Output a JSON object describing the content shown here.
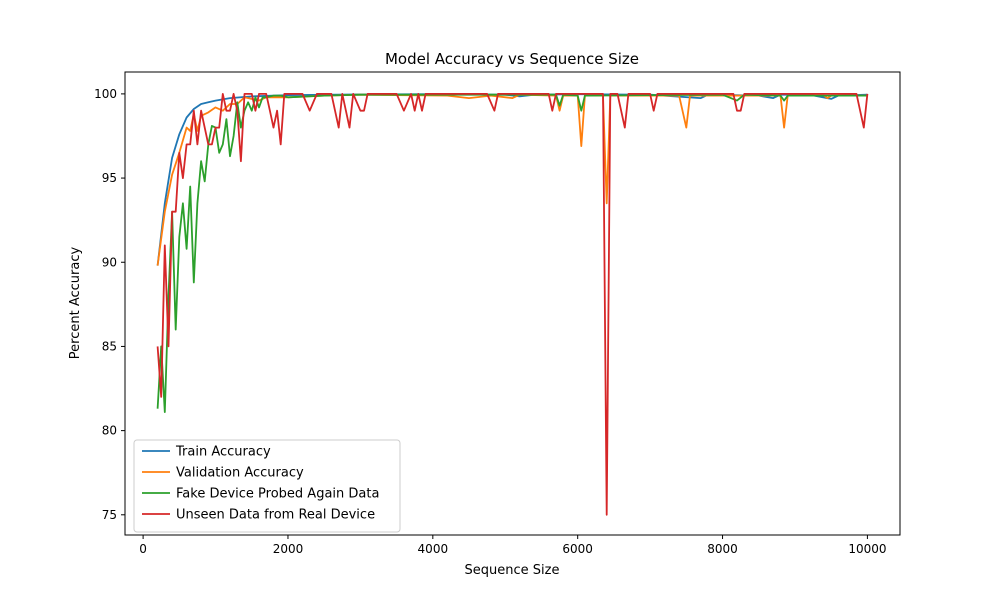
{
  "chart_data": {
    "type": "line",
    "title": "Model Accuracy vs Sequence Size",
    "xlabel": "Sequence Size",
    "ylabel": "Percent Accuracy",
    "xlim": [
      -250,
      10450
    ],
    "ylim": [
      73.8,
      101.3
    ],
    "xticks": [
      0,
      2000,
      4000,
      6000,
      8000,
      10000
    ],
    "yticks": [
      75,
      80,
      85,
      90,
      95,
      100
    ],
    "grid": false,
    "legend_position": "lower-left",
    "series": [
      {
        "name": "Train Accuracy",
        "color": "#1f77b4",
        "points": [
          [
            200,
            89.8
          ],
          [
            300,
            93.5
          ],
          [
            400,
            96.2
          ],
          [
            500,
            97.6
          ],
          [
            600,
            98.6
          ],
          [
            700,
            99.1
          ],
          [
            800,
            99.4
          ],
          [
            900,
            99.5
          ],
          [
            1000,
            99.6
          ],
          [
            1200,
            99.75
          ],
          [
            1500,
            99.85
          ],
          [
            2000,
            99.93
          ],
          [
            3000,
            99.97
          ],
          [
            4000,
            99.98
          ],
          [
            5000,
            99.95
          ],
          [
            5200,
            99.85
          ],
          [
            5400,
            99.95
          ],
          [
            6000,
            99.98
          ],
          [
            7000,
            99.95
          ],
          [
            7700,
            99.75
          ],
          [
            7800,
            99.95
          ],
          [
            8500,
            99.9
          ],
          [
            8700,
            99.75
          ],
          [
            8800,
            99.95
          ],
          [
            9200,
            99.95
          ],
          [
            9500,
            99.7
          ],
          [
            9600,
            99.9
          ],
          [
            10000,
            99.95
          ]
        ]
      },
      {
        "name": "Validation Accuracy",
        "color": "#ff7f0e",
        "points": [
          [
            200,
            89.8
          ],
          [
            300,
            93.0
          ],
          [
            400,
            95.2
          ],
          [
            500,
            96.5
          ],
          [
            600,
            98.0
          ],
          [
            650,
            97.8
          ],
          [
            700,
            98.8
          ],
          [
            750,
            97.8
          ],
          [
            800,
            98.7
          ],
          [
            900,
            98.9
          ],
          [
            1000,
            99.2
          ],
          [
            1100,
            99.0
          ],
          [
            1200,
            99.4
          ],
          [
            1300,
            99.4
          ],
          [
            1400,
            99.8
          ],
          [
            1600,
            99.6
          ],
          [
            1700,
            99.8
          ],
          [
            2000,
            99.8
          ],
          [
            2500,
            99.9
          ],
          [
            3000,
            99.95
          ],
          [
            4200,
            99.9
          ],
          [
            4500,
            99.75
          ],
          [
            4800,
            99.9
          ],
          [
            5100,
            99.75
          ],
          [
            5200,
            99.95
          ],
          [
            5700,
            99.9
          ],
          [
            5750,
            99.0
          ],
          [
            5800,
            99.9
          ],
          [
            6000,
            99.9
          ],
          [
            6050,
            96.9
          ],
          [
            6100,
            99.9
          ],
          [
            6350,
            99.9
          ],
          [
            6400,
            93.5
          ],
          [
            6450,
            99.9
          ],
          [
            7400,
            99.9
          ],
          [
            7500,
            98.0
          ],
          [
            7550,
            99.9
          ],
          [
            8800,
            99.9
          ],
          [
            8850,
            98.0
          ],
          [
            8900,
            99.9
          ],
          [
            9400,
            99.9
          ],
          [
            9450,
            99.75
          ],
          [
            9500,
            99.9
          ],
          [
            10000,
            99.9
          ]
        ]
      },
      {
        "name": "Fake Device Probed Again Data",
        "color": "#2ca02c",
        "points": [
          [
            200,
            81.3
          ],
          [
            250,
            85.0
          ],
          [
            300,
            81.1
          ],
          [
            350,
            88.0
          ],
          [
            400,
            93.0
          ],
          [
            450,
            86.0
          ],
          [
            500,
            91.5
          ],
          [
            550,
            93.5
          ],
          [
            600,
            90.8
          ],
          [
            650,
            94.5
          ],
          [
            700,
            88.8
          ],
          [
            750,
            93.5
          ],
          [
            800,
            96.0
          ],
          [
            850,
            94.8
          ],
          [
            900,
            97.0
          ],
          [
            950,
            98.1
          ],
          [
            1000,
            98.0
          ],
          [
            1050,
            96.5
          ],
          [
            1100,
            97.0
          ],
          [
            1150,
            98.5
          ],
          [
            1200,
            96.3
          ],
          [
            1250,
            97.5
          ],
          [
            1300,
            99.5
          ],
          [
            1350,
            98.0
          ],
          [
            1400,
            99.0
          ],
          [
            1450,
            99.5
          ],
          [
            1500,
            99.0
          ],
          [
            1550,
            99.8
          ],
          [
            1600,
            99.2
          ],
          [
            1650,
            99.8
          ],
          [
            1700,
            99.8
          ],
          [
            1800,
            99.9
          ],
          [
            1900,
            99.9
          ],
          [
            2000,
            99.8
          ],
          [
            2500,
            99.9
          ],
          [
            3000,
            99.95
          ],
          [
            4000,
            99.95
          ],
          [
            5000,
            99.95
          ],
          [
            5700,
            99.95
          ],
          [
            5750,
            99.3
          ],
          [
            5800,
            99.95
          ],
          [
            6000,
            99.9
          ],
          [
            6050,
            99.0
          ],
          [
            6100,
            99.9
          ],
          [
            8000,
            99.95
          ],
          [
            8200,
            99.6
          ],
          [
            8300,
            99.95
          ],
          [
            8800,
            99.9
          ],
          [
            8850,
            99.6
          ],
          [
            8900,
            99.9
          ],
          [
            10000,
            99.9
          ]
        ]
      },
      {
        "name": "Unseen Data from Real Device",
        "color": "#d62728",
        "points": [
          [
            200,
            85.0
          ],
          [
            250,
            82.0
          ],
          [
            300,
            91.0
          ],
          [
            350,
            85.0
          ],
          [
            400,
            93.0
          ],
          [
            450,
            93.0
          ],
          [
            500,
            96.5
          ],
          [
            550,
            95.0
          ],
          [
            600,
            97.0
          ],
          [
            650,
            97.0
          ],
          [
            700,
            99.0
          ],
          [
            750,
            97.0
          ],
          [
            800,
            99.0
          ],
          [
            850,
            98.0
          ],
          [
            900,
            97.0
          ],
          [
            950,
            97.0
          ],
          [
            1000,
            98.0
          ],
          [
            1050,
            98.0
          ],
          [
            1100,
            100.0
          ],
          [
            1150,
            99.0
          ],
          [
            1200,
            99.0
          ],
          [
            1250,
            100.0
          ],
          [
            1300,
            99.0
          ],
          [
            1350,
            96.0
          ],
          [
            1400,
            100.0
          ],
          [
            1450,
            100.0
          ],
          [
            1500,
            100.0
          ],
          [
            1550,
            99.0
          ],
          [
            1600,
            100.0
          ],
          [
            1650,
            100.0
          ],
          [
            1700,
            100.0
          ],
          [
            1750,
            99.0
          ],
          [
            1800,
            98.0
          ],
          [
            1850,
            99.0
          ],
          [
            1900,
            97.0
          ],
          [
            1950,
            100.0
          ],
          [
            2000,
            100.0
          ],
          [
            2100,
            100.0
          ],
          [
            2200,
            100.0
          ],
          [
            2300,
            99.0
          ],
          [
            2400,
            100.0
          ],
          [
            2500,
            100.0
          ],
          [
            2600,
            100.0
          ],
          [
            2700,
            98.0
          ],
          [
            2750,
            100.0
          ],
          [
            2800,
            99.0
          ],
          [
            2850,
            98.0
          ],
          [
            2900,
            100.0
          ],
          [
            3000,
            99.0
          ],
          [
            3050,
            99.0
          ],
          [
            3100,
            100.0
          ],
          [
            3500,
            100.0
          ],
          [
            3600,
            99.0
          ],
          [
            3700,
            100.0
          ],
          [
            3750,
            99.0
          ],
          [
            3800,
            100.0
          ],
          [
            3850,
            99.0
          ],
          [
            3900,
            100.0
          ],
          [
            4750,
            100.0
          ],
          [
            4850,
            99.0
          ],
          [
            4900,
            100.0
          ],
          [
            5600,
            100.0
          ],
          [
            5650,
            99.0
          ],
          [
            5700,
            100.0
          ],
          [
            6350,
            100.0
          ],
          [
            6400,
            75.0
          ],
          [
            6450,
            100.0
          ],
          [
            6550,
            100.0
          ],
          [
            6650,
            98.0
          ],
          [
            6700,
            100.0
          ],
          [
            7000,
            100.0
          ],
          [
            7050,
            99.0
          ],
          [
            7100,
            100.0
          ],
          [
            8150,
            100.0
          ],
          [
            8200,
            99.0
          ],
          [
            8250,
            99.0
          ],
          [
            8300,
            100.0
          ],
          [
            9850,
            100.0
          ],
          [
            9950,
            98.0
          ],
          [
            10000,
            100.0
          ]
        ]
      }
    ]
  }
}
